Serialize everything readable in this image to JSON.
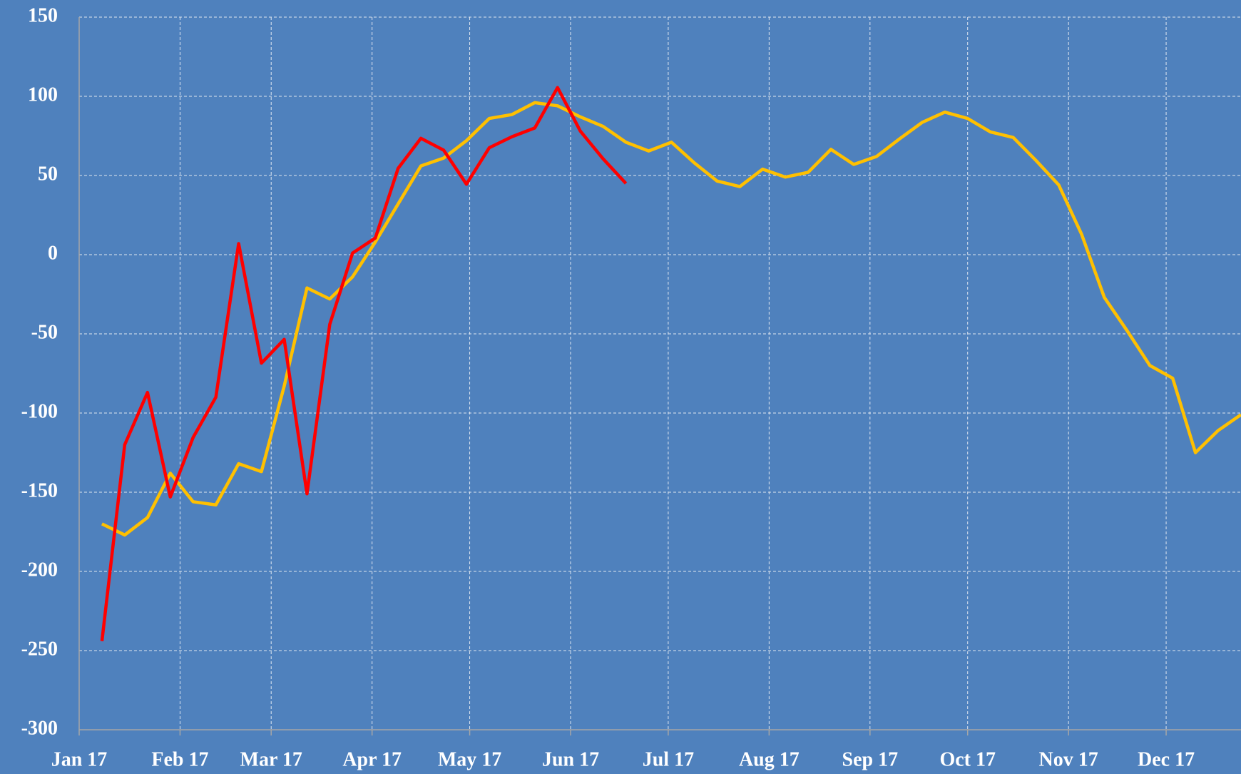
{
  "chart_data": {
    "type": "line",
    "x": [
      7,
      14,
      21,
      28,
      35,
      42,
      49,
      56,
      63,
      70,
      77,
      84,
      91,
      98,
      105,
      112,
      119,
      126,
      133,
      140,
      147,
      154,
      161,
      168,
      175,
      182,
      189,
      196,
      203,
      210,
      217,
      224,
      231,
      238,
      245,
      252,
      259,
      266,
      273,
      280,
      287,
      294,
      301,
      308,
      315,
      322,
      329,
      336,
      343,
      350,
      357
    ],
    "series": [
      {
        "color": "#ffc000",
        "values": [
          -170,
          -177,
          -166,
          -138,
          -156,
          -158,
          -132,
          -137,
          -83,
          -21,
          -28,
          -14,
          8,
          32,
          56,
          61,
          72,
          86,
          88.5,
          96,
          94,
          87,
          81,
          71,
          65.5,
          71,
          58,
          46.5,
          43,
          54,
          49,
          52,
          66.5,
          57,
          62,
          73,
          83.5,
          90,
          86,
          77.5,
          74,
          59.5,
          44,
          13,
          -27,
          -48,
          -70,
          -78,
          -125,
          -111,
          -101
        ]
      },
      {
        "color": "#ff0000",
        "values": [
          -244,
          -120,
          -87,
          -153,
          -115.5,
          -90,
          7,
          -68.5,
          -53.5,
          -151,
          -44,
          1,
          10.5,
          54.5,
          73.5,
          66,
          44.5,
          67.5,
          74.5,
          80,
          105.5,
          78,
          60.5,
          45,
          null,
          null,
          null,
          null,
          null,
          null,
          null,
          null,
          null,
          null,
          null,
          null,
          null,
          null,
          null,
          null,
          null,
          null,
          null,
          null,
          null,
          null,
          null,
          null,
          null,
          null,
          null
        ]
      }
    ],
    "xlim": [
      0,
      357
    ],
    "xticks": [
      {
        "value": 0,
        "label": "Jan 17"
      },
      {
        "value": 31,
        "label": "Feb 17"
      },
      {
        "value": 59,
        "label": "Mar 17"
      },
      {
        "value": 90,
        "label": "Apr 17"
      },
      {
        "value": 120,
        "label": "May 17"
      },
      {
        "value": 151,
        "label": "Jun 17"
      },
      {
        "value": 181,
        "label": "Jul 17"
      },
      {
        "value": 212,
        "label": "Aug 17"
      },
      {
        "value": 243,
        "label": "Sep 17"
      },
      {
        "value": 273,
        "label": "Oct 17"
      },
      {
        "value": 304,
        "label": "Nov 17"
      },
      {
        "value": 334,
        "label": "Dec 17"
      }
    ],
    "ylim": [
      -300,
      150
    ],
    "yticks": [
      -300,
      -250,
      -200,
      -150,
      -100,
      -50,
      0,
      50,
      100,
      150
    ],
    "grid": true
  }
}
